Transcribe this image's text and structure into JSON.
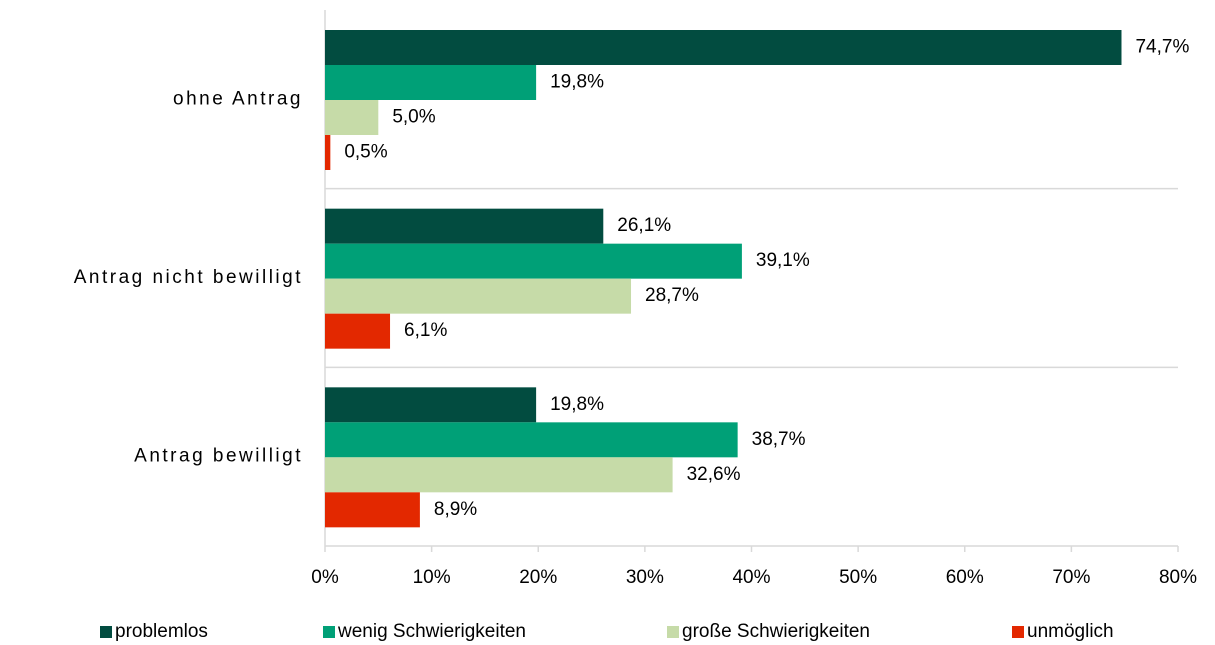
{
  "chart_data": {
    "type": "bar",
    "orientation": "horizontal",
    "categories": [
      "ohne Antrag",
      "Antrag nicht bewilligt",
      "Antrag bewilligt"
    ],
    "series": [
      {
        "name": "problemlos",
        "color": "#024c40",
        "values": [
          74.7,
          26.1,
          19.8
        ],
        "value_labels": [
          "74,7%",
          "26,1%",
          "19,8%"
        ]
      },
      {
        "name": "wenig Schwierigkeiten",
        "color": "#00a077",
        "values": [
          19.8,
          39.1,
          38.7
        ],
        "value_labels": [
          "19,8%",
          "39,1%",
          "38,7%"
        ]
      },
      {
        "name": "große Schwierigkeiten",
        "color": "#c6dba8",
        "values": [
          5.0,
          28.7,
          32.6
        ],
        "value_labels": [
          "5,0%",
          "28,7%",
          "32,6%"
        ]
      },
      {
        "name": "unmöglich",
        "color": "#e32800",
        "values": [
          0.5,
          6.1,
          8.9
        ],
        "value_labels": [
          "0,5%",
          "6,1%",
          "8,9%"
        ]
      }
    ],
    "xlim": [
      0,
      80
    ],
    "xticks": [
      {
        "value": 0,
        "label": "0%"
      },
      {
        "value": 10,
        "label": "10%"
      },
      {
        "value": 20,
        "label": "20%"
      },
      {
        "value": 30,
        "label": "30%"
      },
      {
        "value": 40,
        "label": "40%"
      },
      {
        "value": 50,
        "label": "50%"
      },
      {
        "value": 60,
        "label": "60%"
      },
      {
        "value": 70,
        "label": "70%"
      },
      {
        "value": 80,
        "label": "80%"
      }
    ],
    "legend": "bottom"
  }
}
